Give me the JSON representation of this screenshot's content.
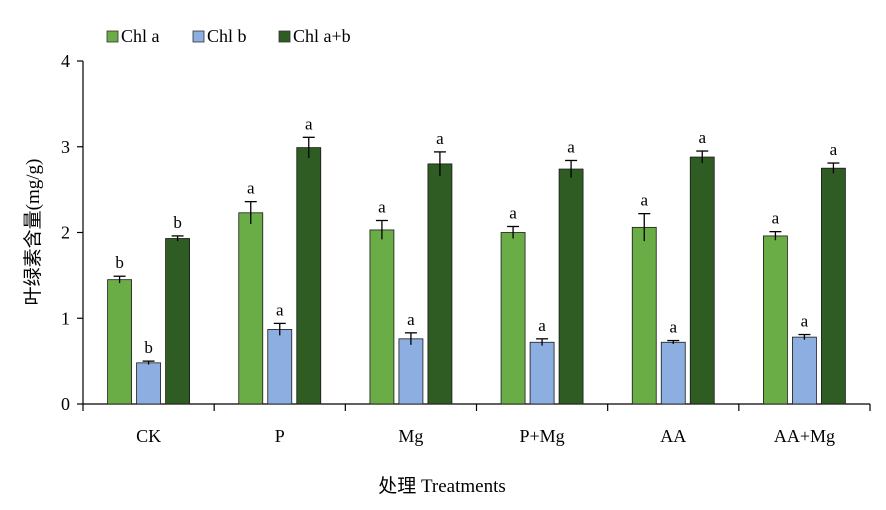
{
  "chart_data": {
    "type": "bar",
    "categories": [
      "CK",
      "P",
      "Mg",
      "P+Mg",
      "AA",
      "AA+Mg"
    ],
    "series": [
      {
        "name": "Chl a",
        "color": "#6AAC45",
        "values": [
          1.45,
          2.23,
          2.03,
          2.0,
          2.06,
          1.96
        ],
        "errors": [
          0.04,
          0.13,
          0.11,
          0.07,
          0.16,
          0.05
        ],
        "sig": [
          "b",
          "a",
          "a",
          "a",
          "a",
          "a"
        ]
      },
      {
        "name": "Chl b",
        "color": "#8DAEE0",
        "values": [
          0.48,
          0.87,
          0.76,
          0.72,
          0.72,
          0.78
        ],
        "errors": [
          0.02,
          0.07,
          0.07,
          0.04,
          0.02,
          0.03
        ],
        "sig": [
          "b",
          "a",
          "a",
          "a",
          "a",
          "a"
        ]
      },
      {
        "name": "Chl a+b",
        "color": "#2E5C22",
        "values": [
          1.93,
          2.99,
          2.8,
          2.74,
          2.88,
          2.75
        ],
        "errors": [
          0.03,
          0.12,
          0.14,
          0.1,
          0.07,
          0.06
        ],
        "sig": [
          "b",
          "a",
          "a",
          "a",
          "a",
          "a"
        ]
      }
    ],
    "ylabel": "叶绿素含量(mg/g)",
    "xlabel": "处理 Treatments",
    "ylim": [
      0,
      4
    ],
    "yticks": [
      "0",
      "1",
      "2",
      "3",
      "4"
    ],
    "legend_position": "top-left",
    "grid": false
  }
}
